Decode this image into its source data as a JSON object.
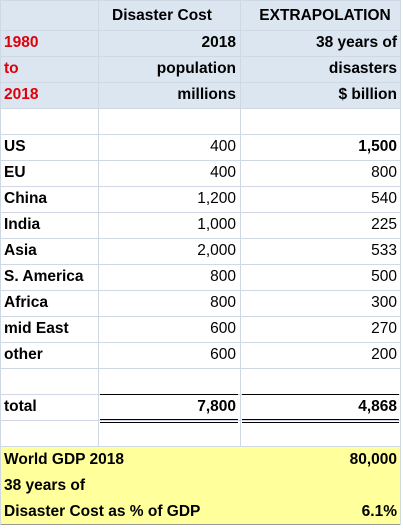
{
  "header": {
    "col_b": "Disaster Cost",
    "col_c": "EXTRAPOLATION",
    "years": [
      "1980",
      "to",
      "2018"
    ],
    "col_b_lines": [
      "2018",
      "population",
      "millions"
    ],
    "col_c_lines": [
      "38 years of",
      "disasters",
      "$ billion"
    ]
  },
  "table": {
    "rows": [
      [
        "US",
        "400",
        "1,500"
      ],
      [
        "EU",
        "400",
        "800"
      ],
      [
        "China",
        "1,200",
        "540"
      ],
      [
        "India",
        "1,000",
        "225"
      ],
      [
        "Asia",
        "2,000",
        "533"
      ],
      [
        "S. America",
        "800",
        "500"
      ],
      [
        "Africa",
        "800",
        "300"
      ],
      [
        "mid East",
        "600",
        "270"
      ],
      [
        "other",
        "600",
        "200"
      ]
    ]
  },
  "total": [
    "total",
    "7,800",
    "4,868"
  ],
  "summary": {
    "rows": [
      [
        "World GDP 2018",
        "80,000"
      ],
      [
        "38 years of"
      ],
      [
        "Disaster Cost as % of GDP",
        "6.1%"
      ]
    ]
  }
}
